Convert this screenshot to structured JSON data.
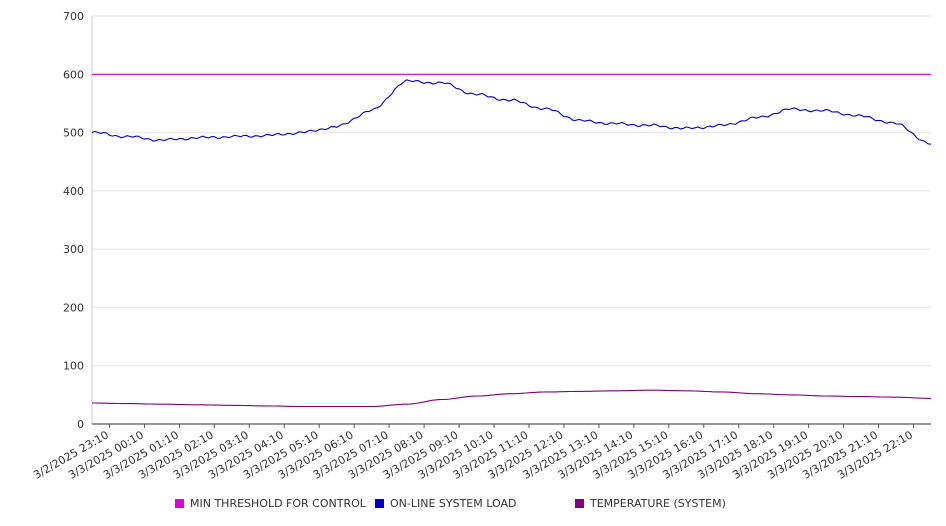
{
  "chart_data": {
    "type": "line",
    "title": "",
    "xlabel": "",
    "ylabel": "",
    "ylim": [
      0,
      700
    ],
    "yticks": [
      0,
      100,
      200,
      300,
      400,
      500,
      600,
      700
    ],
    "grid": true,
    "legend_position": "bottom",
    "xtick_labels": [
      "3/2/2025 23:10",
      "3/3/2025 00:10",
      "3/3/2025 01:10",
      "3/3/2025 02:10",
      "3/3/2025 03:10",
      "3/3/2025 04:10",
      "3/3/2025 05:10",
      "3/3/2025 06:10",
      "3/3/2025 07:10",
      "3/3/2025 08:10",
      "3/3/2025 09:10",
      "3/3/2025 10:10",
      "3/3/2025 11:10",
      "3/3/2025 12:10",
      "3/3/2025 13:10",
      "3/3/2025 14:10",
      "3/3/2025 15:10",
      "3/3/2025 16:10",
      "3/3/2025 17:10",
      "3/3/2025 18:10",
      "3/3/2025 19:10",
      "3/3/2025 20:10",
      "3/3/2025 21:10",
      "3/3/2025 22:10"
    ],
    "series": [
      {
        "name": "MIN THRESHOLD FOR CONTROL",
        "color": "#e000e0",
        "values": [
          600,
          600,
          600,
          600,
          600,
          600,
          600,
          600,
          600,
          600,
          600,
          600,
          600,
          600,
          600,
          600,
          600,
          600,
          600,
          600,
          600,
          600,
          600,
          600,
          600
        ]
      },
      {
        "name": "ON-LINE SYSTEM LOAD",
        "color": "#0000cc",
        "values": [
          500,
          493,
          487,
          491,
          493,
          495,
          500,
          510,
          538,
          588,
          585,
          565,
          555,
          540,
          520,
          515,
          512,
          507,
          512,
          525,
          540,
          537,
          528,
          515,
          480
        ]
      },
      {
        "name": "TEMPERATURE (SYSTEM)",
        "color": "#800080",
        "values": [
          36,
          35,
          34,
          33,
          32,
          31,
          30,
          30,
          30,
          34,
          42,
          48,
          52,
          55,
          56,
          57,
          58,
          57,
          55,
          52,
          50,
          48,
          47,
          46,
          44
        ]
      }
    ]
  }
}
